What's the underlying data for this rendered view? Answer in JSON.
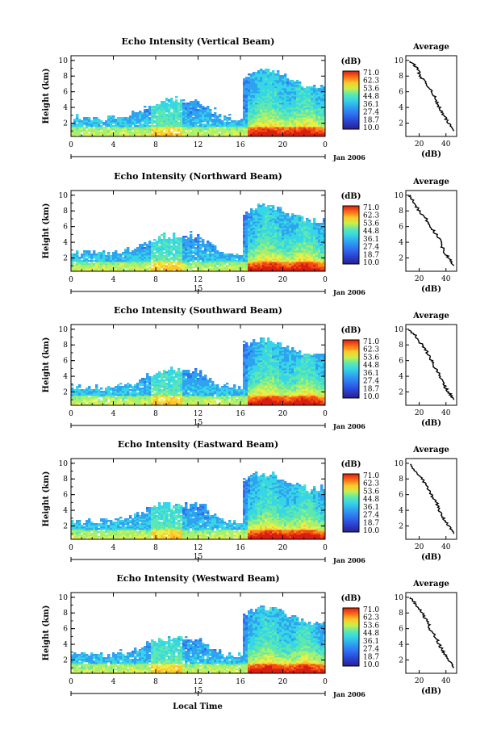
{
  "chart_data": [
    {
      "type": "heatmap",
      "title": "Echo Intensity (Vertical Beam)",
      "ylabel": "Height (km)",
      "x_ticks": [
        "0",
        "4",
        "8",
        "12",
        "16",
        "20",
        "0"
      ],
      "y_ticks": [
        "2",
        "4",
        "6",
        "8",
        "10"
      ],
      "xlim": [
        0,
        24
      ],
      "ylim": [
        0.3,
        10.6
      ],
      "date_label": "Jan 2006",
      "date_tick": "",
      "colorbar_unit": "(dB)",
      "colorbar_ticks": [
        "71.0",
        "62.3",
        "53.6",
        "44.8",
        "36.1",
        "27.4",
        "18.7",
        "10.0"
      ],
      "avg_title": "Average",
      "avg_xlabel": "(dB)",
      "avg_xticks": [
        "20",
        "40"
      ],
      "avg_yticks": [
        "2",
        "4",
        "6",
        "8",
        "10"
      ],
      "avg_xlim": [
        10,
        48
      ],
      "average_profile": {
        "height": [
          9.9,
          9.0,
          8.0,
          7.0,
          6.0,
          5.0,
          4.0,
          3.0,
          2.0,
          1.0
        ],
        "value": [
          13.5,
          18.5,
          21.0,
          25.0,
          30.0,
          32.0,
          35.0,
          38.0,
          42.0,
          46.0
        ]
      }
    },
    {
      "type": "heatmap",
      "title": "Echo Intensity (Northward Beam)",
      "ylabel": "Height (km)",
      "x_ticks": [
        "0",
        "4",
        "8",
        "12",
        "16",
        "20",
        "0"
      ],
      "y_ticks": [
        "2",
        "4",
        "6",
        "8",
        "10"
      ],
      "xlim": [
        0,
        24
      ],
      "ylim": [
        0.3,
        10.6
      ],
      "date_label": "Jan 2006",
      "date_tick": "15",
      "colorbar_unit": "(dB)",
      "colorbar_ticks": [
        "71.0",
        "62.3",
        "53.6",
        "44.8",
        "36.1",
        "27.4",
        "18.7",
        "10.0"
      ],
      "avg_title": "Average",
      "avg_xlabel": "(dB)",
      "avg_xticks": [
        "20",
        "40"
      ],
      "avg_yticks": [
        "2",
        "4",
        "6",
        "8",
        "10"
      ],
      "avg_xlim": [
        10,
        48
      ],
      "average_profile": {
        "height": [
          10.0,
          9.0,
          8.0,
          7.0,
          6.0,
          5.0,
          4.0,
          3.0,
          2.0,
          1.0
        ],
        "value": [
          13.0,
          16.0,
          20.0,
          25.0,
          28.0,
          33.0,
          36.0,
          38.0,
          42.0,
          46.0
        ]
      }
    },
    {
      "type": "heatmap",
      "title": "Echo Intensity (Southward Beam)",
      "ylabel": "Height (km)",
      "x_ticks": [
        "0",
        "4",
        "8",
        "12",
        "16",
        "20",
        "0"
      ],
      "y_ticks": [
        "2",
        "4",
        "6",
        "8",
        "10"
      ],
      "xlim": [
        0,
        24
      ],
      "ylim": [
        0.3,
        10.6
      ],
      "date_label": "Jan 2006",
      "date_tick": "15",
      "colorbar_unit": "(dB)",
      "colorbar_ticks": [
        "71.0",
        "62.3",
        "53.6",
        "44.8",
        "36.1",
        "27.4",
        "18.7",
        "10.0"
      ],
      "avg_title": "Average",
      "avg_xlabel": "(dB)",
      "avg_xticks": [
        "20",
        "40"
      ],
      "avg_yticks": [
        "2",
        "4",
        "6",
        "8",
        "10"
      ],
      "avg_xlim": [
        10,
        48
      ],
      "average_profile": {
        "height": [
          9.9,
          9.0,
          8.0,
          7.0,
          6.0,
          5.0,
          4.0,
          3.0,
          2.0,
          1.0
        ],
        "value": [
          13.0,
          18.0,
          22.0,
          26.0,
          29.0,
          32.0,
          36.0,
          38.0,
          42.0,
          46.0
        ]
      }
    },
    {
      "type": "heatmap",
      "title": "Echo Intensity (Eastward Beam)",
      "ylabel": "Height (km)",
      "x_ticks": [
        "0",
        "4",
        "8",
        "12",
        "16",
        "20",
        "0"
      ],
      "y_ticks": [
        "2",
        "4",
        "6",
        "8",
        "10"
      ],
      "xlim": [
        0,
        24
      ],
      "ylim": [
        0.3,
        10.6
      ],
      "date_label": "Jan 2006",
      "date_tick": "15",
      "colorbar_unit": "(dB)",
      "colorbar_ticks": [
        "71.0",
        "62.3",
        "53.6",
        "44.8",
        "36.1",
        "27.4",
        "18.7",
        "10.0"
      ],
      "avg_title": "Average",
      "avg_xlabel": "(dB)",
      "avg_xticks": [
        "20",
        "40"
      ],
      "avg_yticks": [
        "2",
        "4",
        "6",
        "8",
        "10"
      ],
      "avg_xlim": [
        10,
        48
      ],
      "average_profile": {
        "height": [
          9.9,
          9.0,
          8.0,
          7.0,
          6.0,
          5.0,
          4.0,
          3.0,
          2.0,
          1.0
        ],
        "value": [
          13.0,
          17.0,
          22.0,
          26.0,
          29.0,
          33.0,
          35.0,
          38.0,
          42.0,
          46.0
        ]
      }
    },
    {
      "type": "heatmap",
      "title": "Echo Intensity (Westward Beam)",
      "ylabel": "Height (km)",
      "x_ticks": [
        "0",
        "4",
        "8",
        "12",
        "16",
        "20",
        "0"
      ],
      "y_ticks": [
        "2",
        "4",
        "6",
        "8",
        "10"
      ],
      "xlim": [
        0,
        24
      ],
      "ylim": [
        0.3,
        10.6
      ],
      "date_label": "Jan 2006",
      "date_tick": "15",
      "colorbar_unit": "(dB)",
      "colorbar_ticks": [
        "71.0",
        "62.3",
        "53.6",
        "44.8",
        "36.1",
        "27.4",
        "18.7",
        "10.0"
      ],
      "avg_title": "Average",
      "avg_xlabel": "(dB)",
      "avg_xticks": [
        "20",
        "40"
      ],
      "avg_yticks": [
        "2",
        "4",
        "6",
        "8",
        "10"
      ],
      "avg_xlim": [
        10,
        48
      ],
      "average_profile": {
        "height": [
          10.0,
          9.0,
          8.0,
          7.0,
          6.0,
          5.0,
          4.0,
          3.0,
          2.0,
          1.0
        ],
        "value": [
          13.0,
          18.0,
          22.0,
          26.0,
          28.0,
          32.0,
          35.0,
          38.0,
          42.0,
          46.0
        ]
      }
    }
  ],
  "figure": {
    "xlabel": "Local Time"
  },
  "colorscale": [
    "#2a1f8c",
    "#2a3fd0",
    "#2f6ef0",
    "#2fa2f0",
    "#36d6e6",
    "#5ee8b0",
    "#a6f06e",
    "#e8f048",
    "#ffc62a",
    "#ff8a1e",
    "#f54a14",
    "#d81e10"
  ]
}
